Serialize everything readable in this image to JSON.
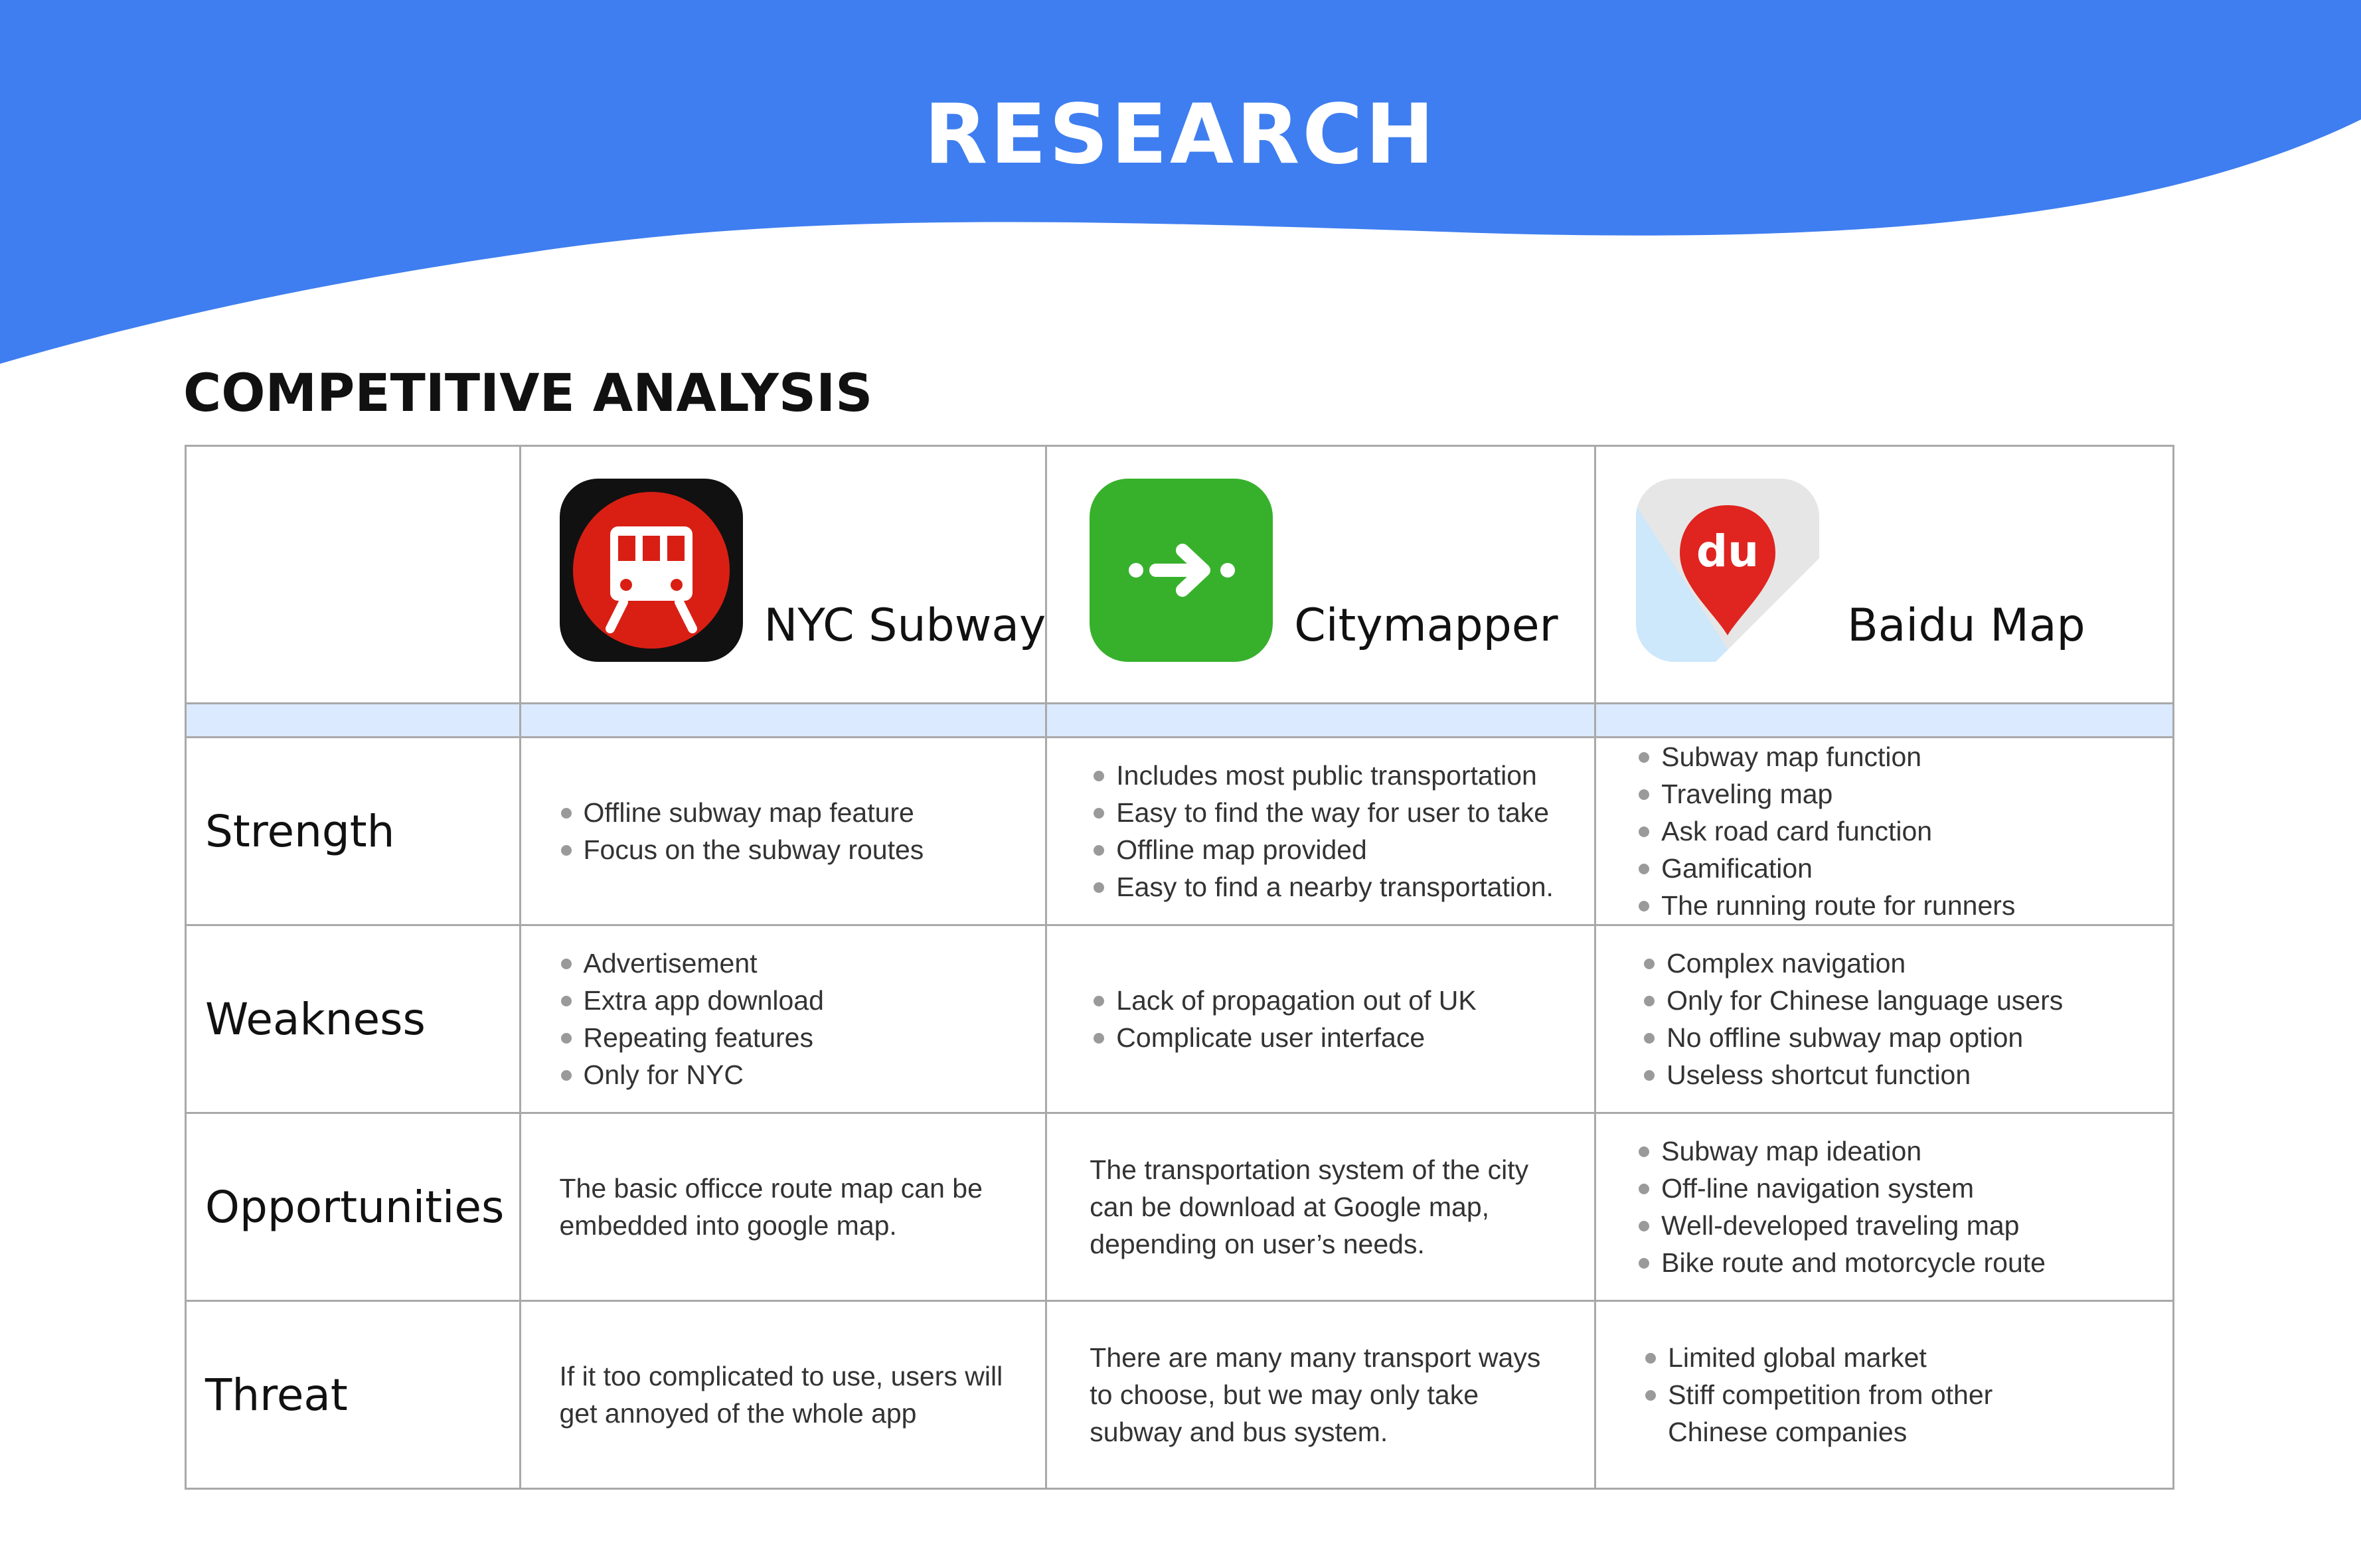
{
  "page": {
    "title": "RESEARCH",
    "section_title": "COMPETITIVE ANALYSIS",
    "banner_color": "#3f7ef0",
    "strip_color": "#dbeafe"
  },
  "apps": [
    {
      "name": "NYC Subway",
      "icon": "subway-train-icon",
      "icon_color": "#d91f14"
    },
    {
      "name": "Citymapper",
      "icon": "route-arrow-icon",
      "icon_color": "#37b12c"
    },
    {
      "name": "Baidu Map",
      "icon": "baidu-map-pin-icon",
      "icon_color": "#e02420",
      "icon_text": "du"
    }
  ],
  "rows": [
    {
      "label": "Strength",
      "cells": [
        [
          "Offline subway map feature",
          "Focus on the subway routes"
        ],
        [
          "Includes most public transportation",
          "Easy to find the way for user to take",
          "Offline map provided",
          "Easy to find a nearby transportation."
        ],
        [
          "Subway map function",
          "Traveling map",
          "Ask road card function",
          "Gamification",
          "The running route for runners"
        ]
      ]
    },
    {
      "label": "Weakness",
      "cells": [
        [
          "Advertisement",
          "Extra app download",
          "Repeating features",
          "Only for NYC"
        ],
        [
          "Lack of propagation out of UK",
          "Complicate user interface"
        ],
        [
          "Complex navigation",
          "Only for Chinese language users",
          "No offline subway map option",
          "Useless shortcut function"
        ]
      ]
    },
    {
      "label": "Opportunities",
      "cells": [
        "The basic officce route map can be embedded into google map.",
        "The transportation system of the city can be download at Google map, depending on user’s needs.",
        [
          "Subway map ideation",
          "Off-line navigation system",
          "Well-developed traveling map",
          "Bike route and motorcycle route"
        ]
      ]
    },
    {
      "label": "Threat",
      "cells": [
        "If it too complicated to use, users will get annoyed of the whole app",
        "There are many many transport  ways to choose, but we may only take subway and bus system.",
        [
          "Limited global market",
          "Stiff competition from other Chinese companies"
        ]
      ]
    }
  ]
}
